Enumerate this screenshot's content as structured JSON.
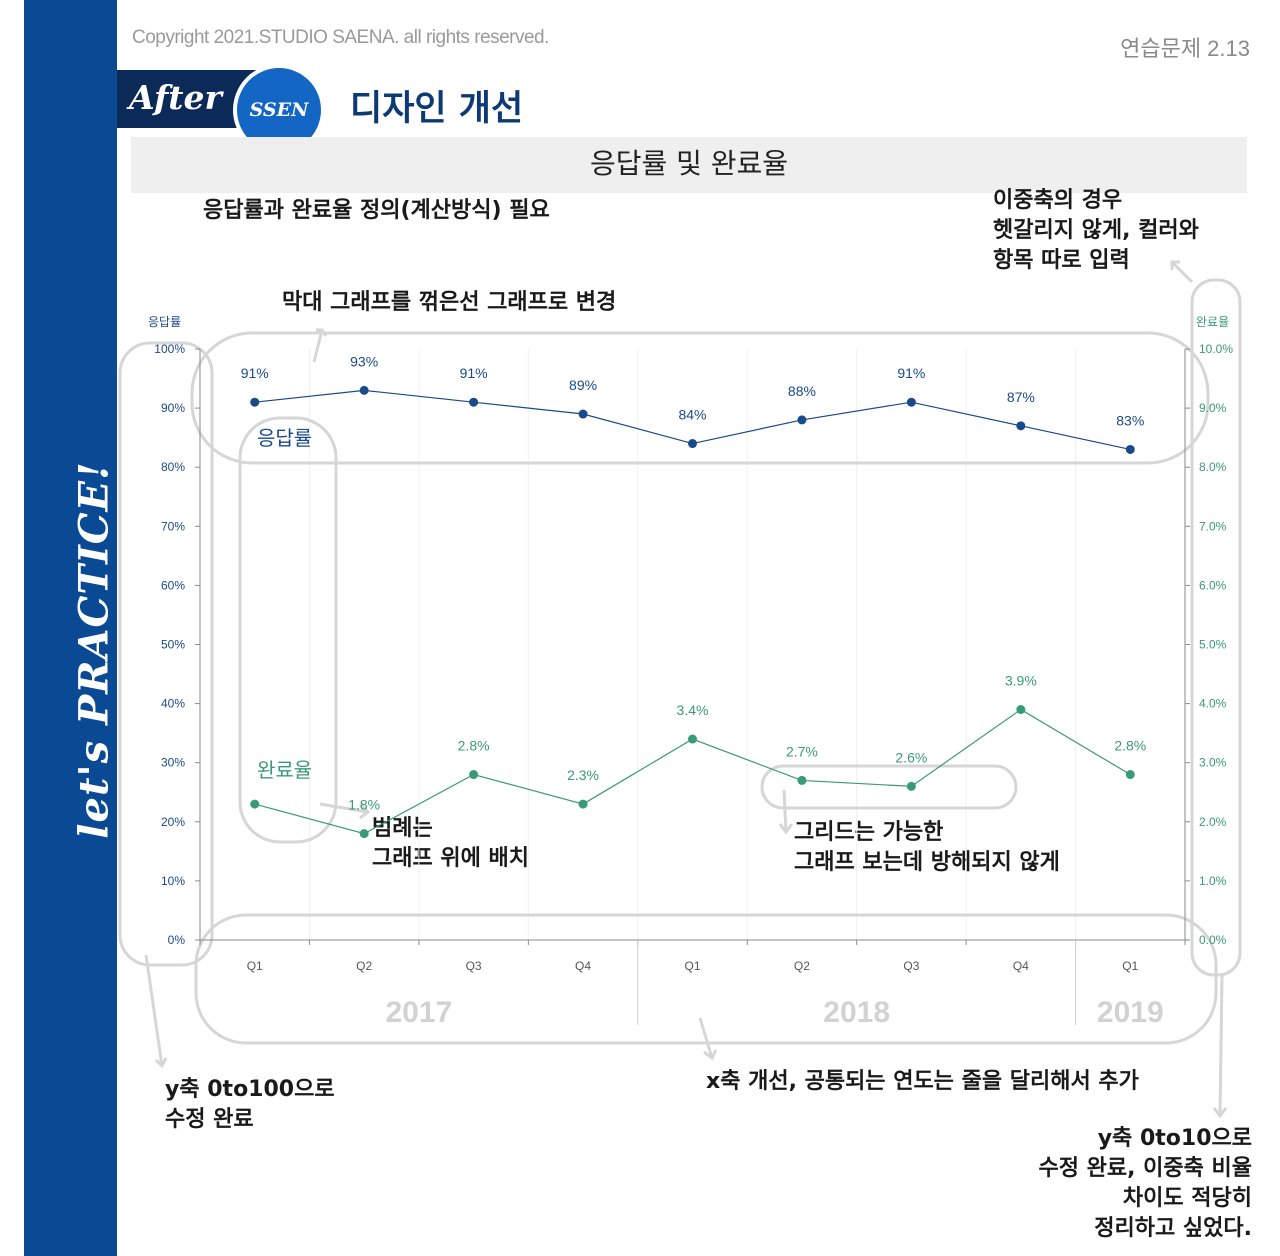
{
  "header": {
    "copyright": "Copyright 2021.STUDIO SAENA. all rights reserved.",
    "exercise": "연습문제 2.13",
    "after_label": "After",
    "badge": "SSEN",
    "design_title": "디자인 개선"
  },
  "sidebar": {
    "text": "let's PRACTICE!"
  },
  "notes": {
    "definition": "응답률과 완료율 정의(계산방식) 필요",
    "chart_change": "막대 그래프를 꺾은선 그래프로 변경",
    "dual_axis": [
      "이중축의 경우",
      "헷갈리지 않게, 컬러와",
      "항목 따로 입력"
    ],
    "legend": [
      "범례는",
      "그래프 위에 배치"
    ],
    "grid": [
      "그리드는 가능한",
      "그래프 보는데 방해되지 않게"
    ],
    "x_axis": "x축 개선, 공통되는 연도는 줄을 달리해서 추가",
    "y_axis_left": [
      "y축 0to100으로",
      "수정 완료"
    ],
    "y_axis_right": [
      "y축 0to10으로",
      "수정 완료, 이중축 비율",
      "차이도 적당히",
      "정리하고 싶었다."
    ]
  },
  "colors": {
    "sidebar": "#0a4a94",
    "response": "#1a4a8a",
    "completion": "#3a9a78",
    "annotation": "#d6d6d6"
  },
  "chart_data": {
    "type": "line",
    "title": "응답률 및 완료율",
    "categories": [
      "Q1",
      "Q2",
      "Q3",
      "Q4",
      "Q1",
      "Q2",
      "Q3",
      "Q4",
      "Q1"
    ],
    "years": [
      {
        "label": "2017",
        "count": 4
      },
      {
        "label": "2018",
        "count": 4
      },
      {
        "label": "2019",
        "count": 1
      }
    ],
    "y_left": {
      "label": "응답률",
      "range": [
        0,
        100
      ],
      "ticks": [
        "0%",
        "10%",
        "20%",
        "30%",
        "40%",
        "50%",
        "60%",
        "70%",
        "80%",
        "90%",
        "100%"
      ]
    },
    "y_right": {
      "label": "완료율",
      "range": [
        0,
        10
      ],
      "ticks": [
        "0.0%",
        "1.0%",
        "2.0%",
        "3.0%",
        "4.0%",
        "5.0%",
        "6.0%",
        "7.0%",
        "8.0%",
        "9.0%",
        "10.0%"
      ]
    },
    "series": [
      {
        "name": "응답률",
        "axis": "left",
        "color": "#1a4a8a",
        "values": [
          91,
          93,
          91,
          89,
          84,
          88,
          91,
          87,
          83
        ],
        "labels": [
          "91%",
          "93%",
          "91%",
          "89%",
          "84%",
          "88%",
          "91%",
          "87%",
          "83%"
        ]
      },
      {
        "name": "완료율",
        "axis": "right",
        "color": "#3a9a78",
        "values": [
          2.3,
          1.8,
          2.8,
          2.3,
          3.4,
          2.7,
          2.6,
          3.9,
          2.8
        ],
        "labels": [
          "",
          "1.8%",
          "2.8%",
          "2.3%",
          "3.4%",
          "2.7%",
          "2.6%",
          "3.9%",
          "2.8%"
        ]
      }
    ],
    "grid": true
  }
}
